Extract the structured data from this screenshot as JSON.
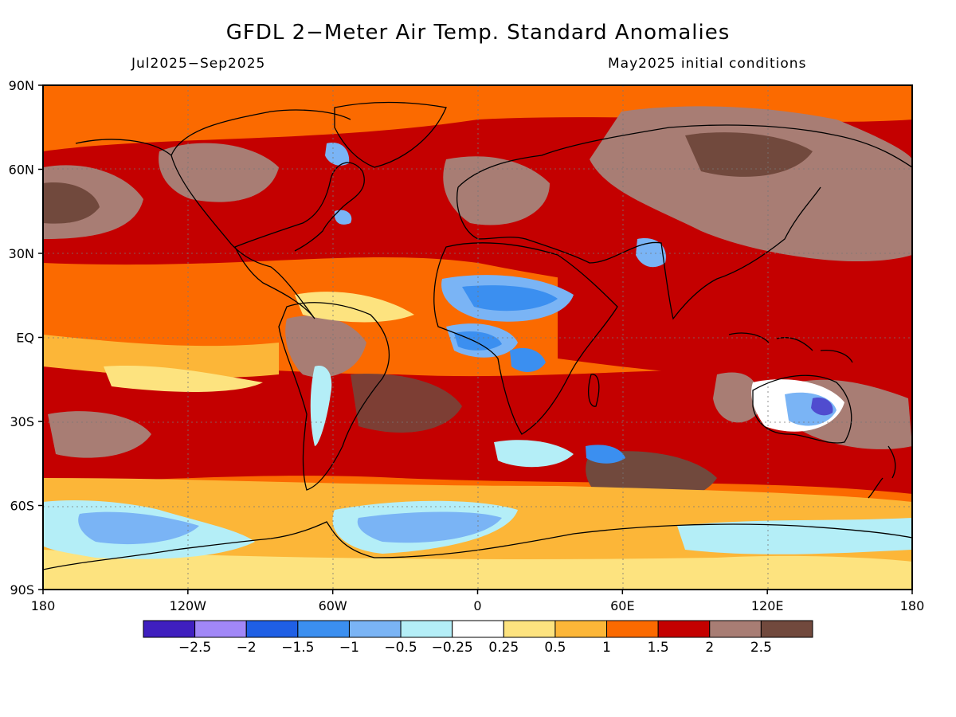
{
  "header": {
    "title": "GFDL 2−Meter Air Temp. Standard Anomalies",
    "period": "Jul2025−Sep2025",
    "init": "May2025 initial conditions"
  },
  "map": {
    "lat_labels": [
      {
        "value": 90,
        "label": "90N"
      },
      {
        "value": 60,
        "label": "60N"
      },
      {
        "value": 30,
        "label": "30N"
      },
      {
        "value": 0,
        "label": "EQ"
      },
      {
        "value": -30,
        "label": "30S"
      },
      {
        "value": -60,
        "label": "60S"
      },
      {
        "value": -90,
        "label": "90S"
      }
    ],
    "lon_labels": [
      {
        "value": -180,
        "label": "180"
      },
      {
        "value": -120,
        "label": "120W"
      },
      {
        "value": -60,
        "label": "60W"
      },
      {
        "value": 0,
        "label": "0"
      },
      {
        "value": 60,
        "label": "60E"
      },
      {
        "value": 120,
        "label": "120E"
      },
      {
        "value": 180,
        "label": "180"
      }
    ]
  },
  "colorbar": {
    "colors": [
      "#3f1fbf",
      "#a187f7",
      "#1f5fe5",
      "#3b8ff0",
      "#7ab4f5",
      "#b4eef7",
      "#ffffff",
      "#fde37f",
      "#fcb638",
      "#fb6a00",
      "#c40000",
      "#a87d74",
      "#71493d"
    ],
    "labels": [
      "−2.5",
      "−2",
      "−1.5",
      "−1",
      "−0.5",
      "−0.25",
      "0.25",
      "0.5",
      "1",
      "1.5",
      "2",
      "2.5"
    ]
  }
}
